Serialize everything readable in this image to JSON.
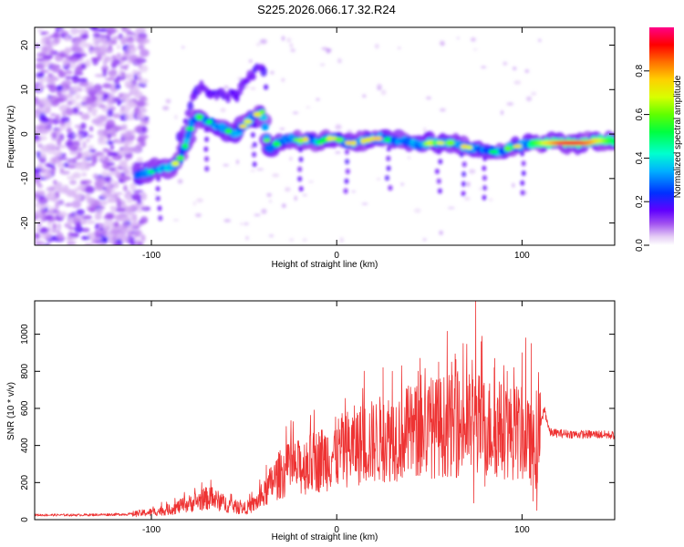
{
  "title": "S225.2026.066.17.32.R24",
  "chart_data": [
    {
      "type": "heatmap",
      "name": "spectrogram",
      "xlabel": "Height of straight line (km)",
      "ylabel": "Frequency (Hz)",
      "xlim": [
        -163,
        150
      ],
      "ylim": [
        -25,
        24
      ],
      "xticks": [
        -100,
        0,
        100
      ],
      "yticks": [
        -20,
        -10,
        0,
        10,
        20
      ],
      "colorbar": {
        "label": "Normalized spectral amplitude",
        "range": [
          0,
          1
        ],
        "ticks": [
          0.0,
          0.2,
          0.4,
          0.6,
          0.8
        ]
      },
      "ridge": {
        "x": [
          -108,
          -100,
          -95,
          -90,
          -85,
          -82,
          -80,
          -78,
          -75,
          -70,
          -65,
          -60,
          -55,
          -50,
          -45,
          -40,
          -37,
          -35,
          -30,
          -25,
          -20,
          -15,
          -10,
          -5,
          0,
          5,
          10,
          15,
          20,
          25,
          30,
          35,
          40,
          45,
          50,
          55,
          60,
          65,
          70,
          75,
          80,
          85,
          90,
          95,
          100,
          105,
          110,
          115,
          120,
          125,
          130,
          135,
          140,
          145,
          150
        ],
        "y": [
          -9,
          -8.5,
          -8,
          -7.5,
          -6,
          -3,
          0,
          3,
          4,
          3,
          2,
          1,
          0,
          2,
          4,
          5,
          -3,
          -3,
          -1.5,
          -1,
          -1.5,
          -1,
          -2,
          -1,
          -1,
          -2,
          -2,
          -1.5,
          -1,
          -1,
          -1.5,
          -1.5,
          -2,
          -2.5,
          -2,
          -2,
          -2,
          -2,
          -3,
          -3,
          -3.5,
          -4,
          -3.5,
          -3,
          -2.5,
          -2,
          -2,
          -2,
          -2,
          -2,
          -2,
          -2,
          -1.5,
          -1.5,
          -1.5
        ]
      }
    },
    {
      "type": "line",
      "name": "snr",
      "xlabel": "Height of straight line (km)",
      "ylabel": "SNR (10 * v/v)",
      "xlim": [
        -163,
        150
      ],
      "ylim": [
        0,
        1180
      ],
      "xticks": [
        -100,
        0,
        100
      ],
      "yticks": [
        0,
        200,
        400,
        600,
        800,
        1000
      ],
      "color": "#ee3333",
      "envelope": {
        "x": [
          -163,
          -140,
          -120,
          -110,
          -100,
          -90,
          -85,
          -80,
          -75,
          -70,
          -65,
          -60,
          -55,
          -50,
          -45,
          -40,
          -35,
          -30,
          -25,
          -20,
          -15,
          -10,
          -5,
          0,
          5,
          10,
          15,
          20,
          25,
          30,
          35,
          40,
          45,
          50,
          55,
          60,
          65,
          70,
          75,
          80,
          85,
          90,
          95,
          100,
          105,
          108,
          110,
          112,
          115,
          120,
          130,
          140,
          150
        ],
        "y": [
          25,
          25,
          28,
          30,
          40,
          55,
          70,
          85,
          100,
          115,
          105,
          85,
          70,
          60,
          80,
          120,
          200,
          250,
          270,
          280,
          300,
          320,
          340,
          360,
          380,
          400,
          410,
          420,
          440,
          450,
          460,
          470,
          480,
          490,
          500,
          510,
          500,
          510,
          520,
          500,
          490,
          480,
          470,
          460,
          400,
          350,
          500,
          600,
          470,
          465,
          460,
          460,
          455
        ]
      },
      "spikes": {
        "x": [
          25,
          30,
          35,
          45,
          55,
          62,
          70,
          75,
          78,
          85,
          92,
          100,
          102,
          105
        ],
        "y": [
          820,
          800,
          830,
          870,
          850,
          850,
          760,
          1180,
          960,
          820,
          800,
          900,
          980,
          950
        ]
      },
      "dips": {
        "x": [
          74,
          80,
          106,
          108
        ],
        "y": [
          90,
          180,
          100,
          50
        ]
      }
    }
  ]
}
